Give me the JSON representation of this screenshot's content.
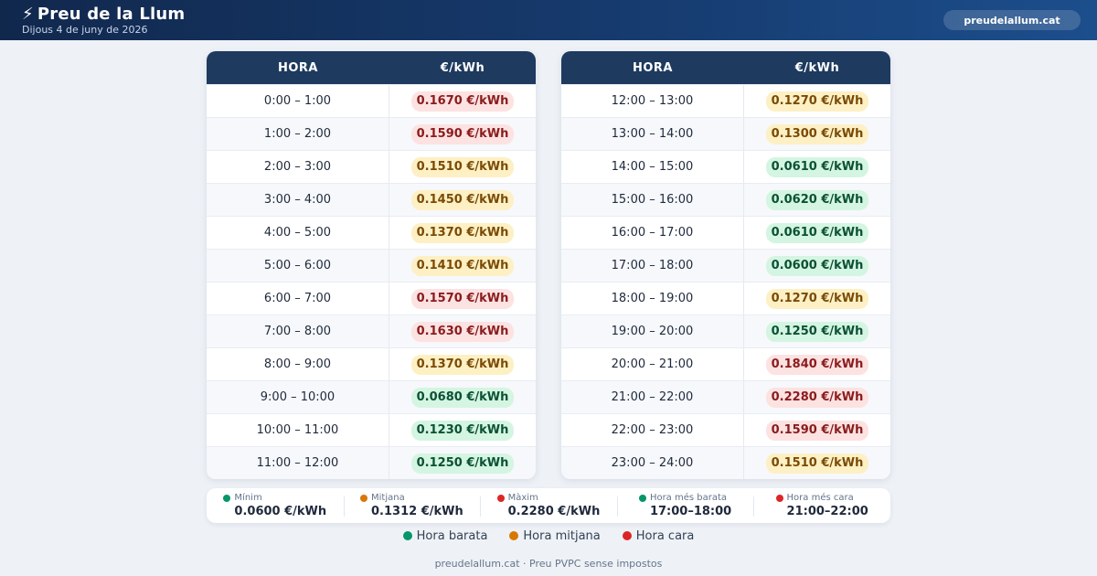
{
  "header": {
    "bolt_icon": "⚡",
    "title": "Preu de la Llum",
    "date": "Dijous 4 de juny de 2026",
    "site_button": "preudelallum.cat"
  },
  "colors": {
    "barata": "#059669",
    "mitjana": "#d97706",
    "cara": "#dc2626"
  },
  "tables": [
    {
      "headers": {
        "hour": "HORA",
        "price": "€/kWh"
      },
      "rows": [
        {
          "hour": "0:00 – 1:00",
          "price": "0.1670 €/kWh",
          "level": "cara"
        },
        {
          "hour": "1:00 – 2:00",
          "price": "0.1590 €/kWh",
          "level": "cara"
        },
        {
          "hour": "2:00 – 3:00",
          "price": "0.1510 €/kWh",
          "level": "mitjana"
        },
        {
          "hour": "3:00 – 4:00",
          "price": "0.1450 €/kWh",
          "level": "mitjana"
        },
        {
          "hour": "4:00 – 5:00",
          "price": "0.1370 €/kWh",
          "level": "mitjana"
        },
        {
          "hour": "5:00 – 6:00",
          "price": "0.1410 €/kWh",
          "level": "mitjana"
        },
        {
          "hour": "6:00 – 7:00",
          "price": "0.1570 €/kWh",
          "level": "cara"
        },
        {
          "hour": "7:00 – 8:00",
          "price": "0.1630 €/kWh",
          "level": "cara"
        },
        {
          "hour": "8:00 – 9:00",
          "price": "0.1370 €/kWh",
          "level": "mitjana"
        },
        {
          "hour": "9:00 – 10:00",
          "price": "0.0680 €/kWh",
          "level": "barata"
        },
        {
          "hour": "10:00 – 11:00",
          "price": "0.1230 €/kWh",
          "level": "barata"
        },
        {
          "hour": "11:00 – 12:00",
          "price": "0.1250 €/kWh",
          "level": "barata"
        }
      ]
    },
    {
      "headers": {
        "hour": "HORA",
        "price": "€/kWh"
      },
      "rows": [
        {
          "hour": "12:00 – 13:00",
          "price": "0.1270 €/kWh",
          "level": "mitjana"
        },
        {
          "hour": "13:00 – 14:00",
          "price": "0.1300 €/kWh",
          "level": "mitjana"
        },
        {
          "hour": "14:00 – 15:00",
          "price": "0.0610 €/kWh",
          "level": "barata"
        },
        {
          "hour": "15:00 – 16:00",
          "price": "0.0620 €/kWh",
          "level": "barata"
        },
        {
          "hour": "16:00 – 17:00",
          "price": "0.0610 €/kWh",
          "level": "barata"
        },
        {
          "hour": "17:00 – 18:00",
          "price": "0.0600 €/kWh",
          "level": "barata"
        },
        {
          "hour": "18:00 – 19:00",
          "price": "0.1270 €/kWh",
          "level": "mitjana"
        },
        {
          "hour": "19:00 – 20:00",
          "price": "0.1250 €/kWh",
          "level": "barata"
        },
        {
          "hour": "20:00 – 21:00",
          "price": "0.1840 €/kWh",
          "level": "cara"
        },
        {
          "hour": "21:00 – 22:00",
          "price": "0.2280 €/kWh",
          "level": "cara"
        },
        {
          "hour": "22:00 – 23:00",
          "price": "0.1590 €/kWh",
          "level": "cara"
        },
        {
          "hour": "23:00 – 24:00",
          "price": "0.1510 €/kWh",
          "level": "mitjana"
        }
      ]
    }
  ],
  "summary": [
    {
      "name": "stat-minim",
      "label": "Mínim",
      "value": "0.0600 €/kWh",
      "color": "#059669"
    },
    {
      "name": "stat-mitjana",
      "label": "Mitjana",
      "value": "0.1312 €/kWh",
      "color": "#d97706"
    },
    {
      "name": "stat-maxim",
      "label": "Màxim",
      "value": "0.2280 €/kWh",
      "color": "#dc2626"
    },
    {
      "name": "stat-hora-barata",
      "label": "Hora més barata",
      "value": "17:00–18:00",
      "color": "#059669"
    },
    {
      "name": "stat-hora-cara",
      "label": "Hora més cara",
      "value": "21:00–22:00",
      "color": "#dc2626"
    }
  ],
  "legend": [
    {
      "name": "legend-barata",
      "label": "Hora barata",
      "color": "#059669"
    },
    {
      "name": "legend-mitjana",
      "label": "Hora mitjana",
      "color": "#d97706"
    },
    {
      "name": "legend-cara",
      "label": "Hora cara",
      "color": "#dc2626"
    }
  ],
  "footer": "preudelallum.cat · Preu PVPC sense impostos"
}
